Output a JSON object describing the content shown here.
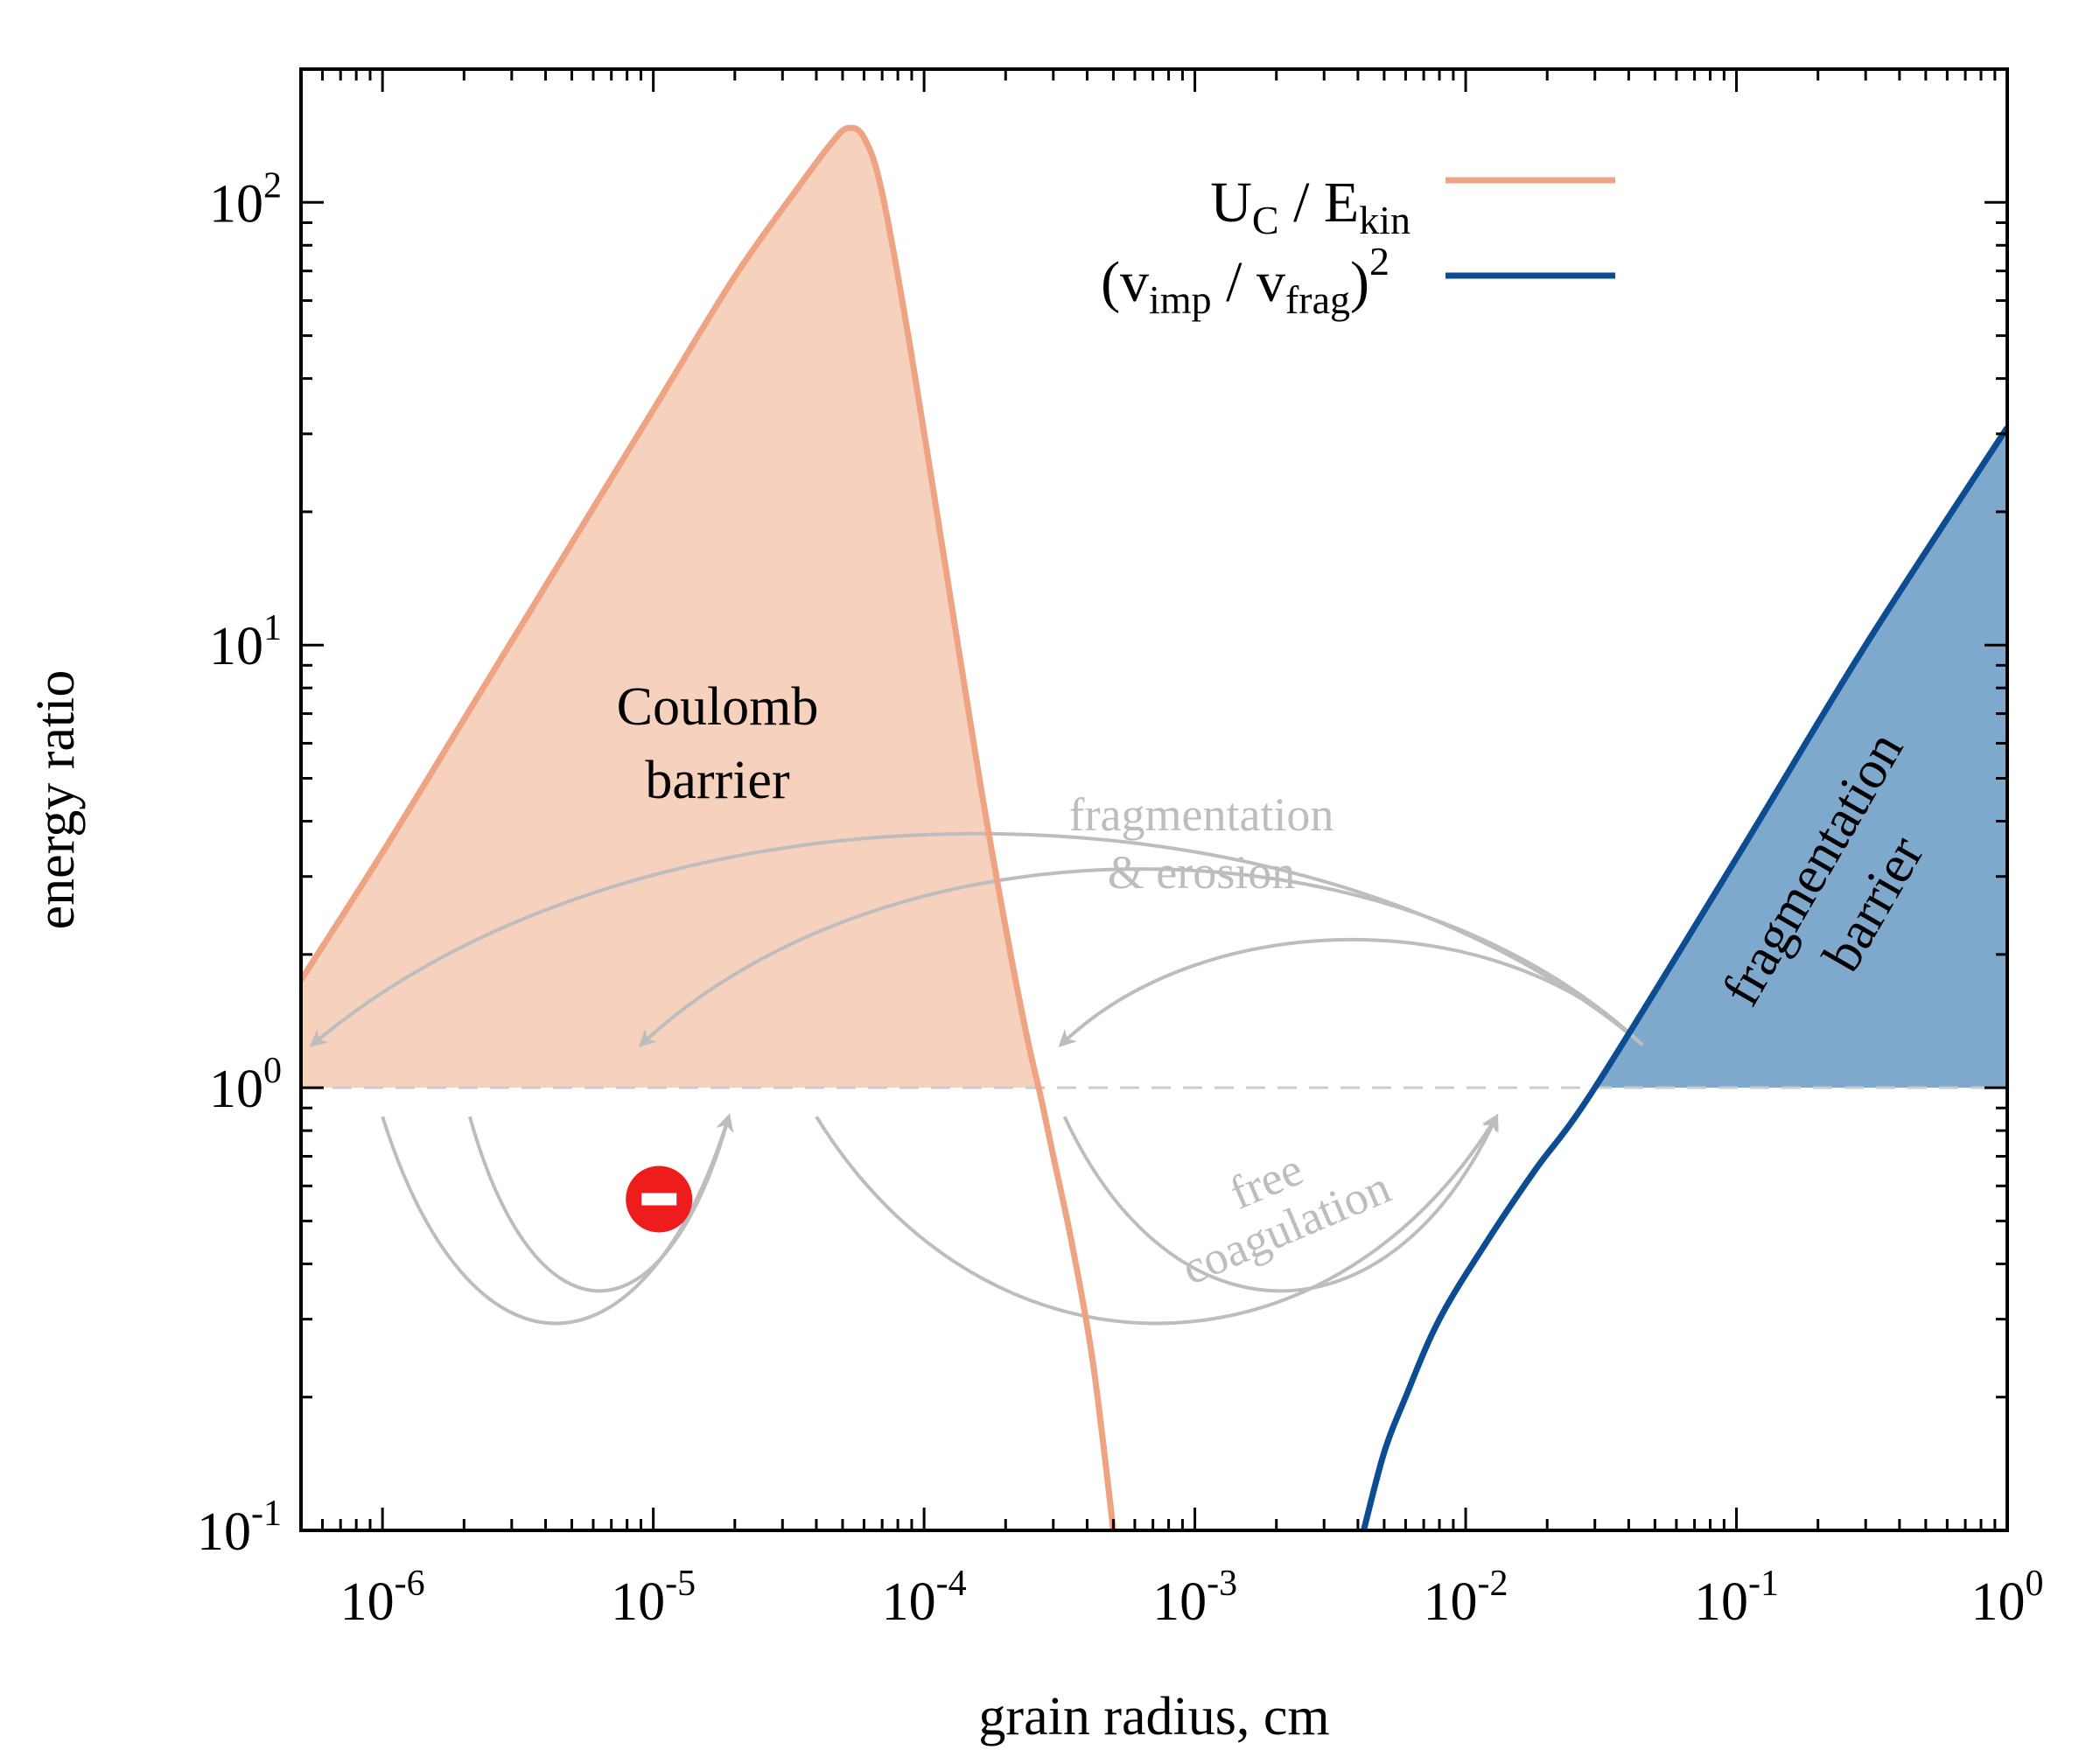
{
  "chart_data": {
    "type": "line",
    "xlabel": "grain radius, cm",
    "ylabel": "energy ratio",
    "xscale": "log",
    "yscale": "log",
    "xlim": [
      5e-07,
      1
    ],
    "ylim": [
      0.1,
      200
    ],
    "x_ticks": [
      {
        "base": "10",
        "exp": "-6",
        "value": 1e-06
      },
      {
        "base": "10",
        "exp": "-5",
        "value": 1e-05
      },
      {
        "base": "10",
        "exp": "-4",
        "value": 0.0001
      },
      {
        "base": "10",
        "exp": "-3",
        "value": 0.001
      },
      {
        "base": "10",
        "exp": "-2",
        "value": 0.01
      },
      {
        "base": "10",
        "exp": "-1",
        "value": 0.1
      },
      {
        "base": "10",
        "exp": "0",
        "value": 1
      }
    ],
    "y_ticks": [
      {
        "base": "10",
        "exp": "-1",
        "value": 0.1
      },
      {
        "base": "10",
        "exp": "0",
        "value": 1
      },
      {
        "base": "10",
        "exp": "1",
        "value": 10
      },
      {
        "base": "10",
        "exp": "2",
        "value": 100
      }
    ],
    "series": [
      {
        "name": "UC / Ekin",
        "legend": {
          "a": "U",
          "a_sub": "C",
          "b": " / E",
          "b_sub": "kin"
        },
        "color": "#eea383",
        "fill": "#f6d1be",
        "points": [
          [
            5e-07,
            1.75
          ],
          [
            1e-06,
            3.4
          ],
          [
            2e-06,
            6.8
          ],
          [
            5e-06,
            17
          ],
          [
            1e-05,
            34
          ],
          [
            2e-05,
            68
          ],
          [
            3.5e-05,
            110
          ],
          [
            4.5e-05,
            135
          ],
          [
            5.2e-05,
            147
          ],
          [
            6e-05,
            140
          ],
          [
            7e-05,
            105
          ],
          [
            9e-05,
            45
          ],
          [
            0.00012,
            15
          ],
          [
            0.00016,
            5
          ],
          [
            0.0002,
            2.3
          ],
          [
            0.00024,
            1.3
          ],
          [
            0.00027,
            0.95
          ],
          [
            0.0003,
            0.7
          ],
          [
            0.00035,
            0.45
          ],
          [
            0.00042,
            0.24
          ],
          [
            0.0005,
            0.1
          ]
        ]
      },
      {
        "name": "(vimp / vfrag)^2",
        "legend": {
          "a": "(v",
          "a_sub": "imp",
          "b": " / v",
          "b_sub": "frag",
          "c": ")",
          "sup": "2"
        },
        "color": "#0b4c93",
        "fill": "#7fa8cd",
        "points": [
          [
            0.0042,
            0.1
          ],
          [
            0.005,
            0.15
          ],
          [
            0.006,
            0.2
          ],
          [
            0.008,
            0.3
          ],
          [
            0.012,
            0.45
          ],
          [
            0.018,
            0.65
          ],
          [
            0.03,
            1.0
          ],
          [
            0.1,
            3.3
          ],
          [
            0.3,
            10
          ],
          [
            1.0,
            31
          ]
        ]
      }
    ],
    "reference_line": {
      "y": 1,
      "style": "dashed",
      "color": "#cccccc"
    },
    "annotations": {
      "coulomb": [
        "Coulomb",
        "barrier"
      ],
      "frag_barrier": [
        "fragmentation",
        "barrier"
      ],
      "frag_erosion": [
        "fragmentation",
        "& erosion"
      ],
      "free_coag": [
        "free",
        "coagulation"
      ]
    },
    "flow_arrows": {
      "color": "#bdbdbd",
      "fragmentation_erosion": [
        {
          "from": [
            0.045,
            1.25
          ],
          "to": [
            5.5e-07,
            1.25
          ],
          "peak_y": 2.6
        },
        {
          "from": [
            0.045,
            1.25
          ],
          "to": [
            9e-06,
            1.25
          ],
          "peak_y": 2.3
        },
        {
          "from": [
            0.045,
            1.25
          ],
          "to": [
            0.00032,
            1.25
          ],
          "peak_y": 1.8
        }
      ],
      "free_coagulation": [
        {
          "from": [
            1e-06,
            0.86
          ],
          "to": [
            1.9e-05,
            0.86
          ],
          "trough_y": 0.42
        },
        {
          "from": [
            2.1e-06,
            0.86
          ],
          "to": [
            1.9e-05,
            0.86
          ],
          "trough_y": 0.47
        },
        {
          "from": [
            4e-05,
            0.86
          ],
          "to": [
            0.013,
            0.86
          ],
          "trough_y": 0.42
        },
        {
          "from": [
            0.00033,
            0.86
          ],
          "to": [
            0.013,
            0.86
          ],
          "trough_y": 0.47
        }
      ],
      "blocked_marker": {
        "x": 1.05e-05,
        "y": 0.56,
        "color": "#ee1c1c"
      }
    }
  }
}
